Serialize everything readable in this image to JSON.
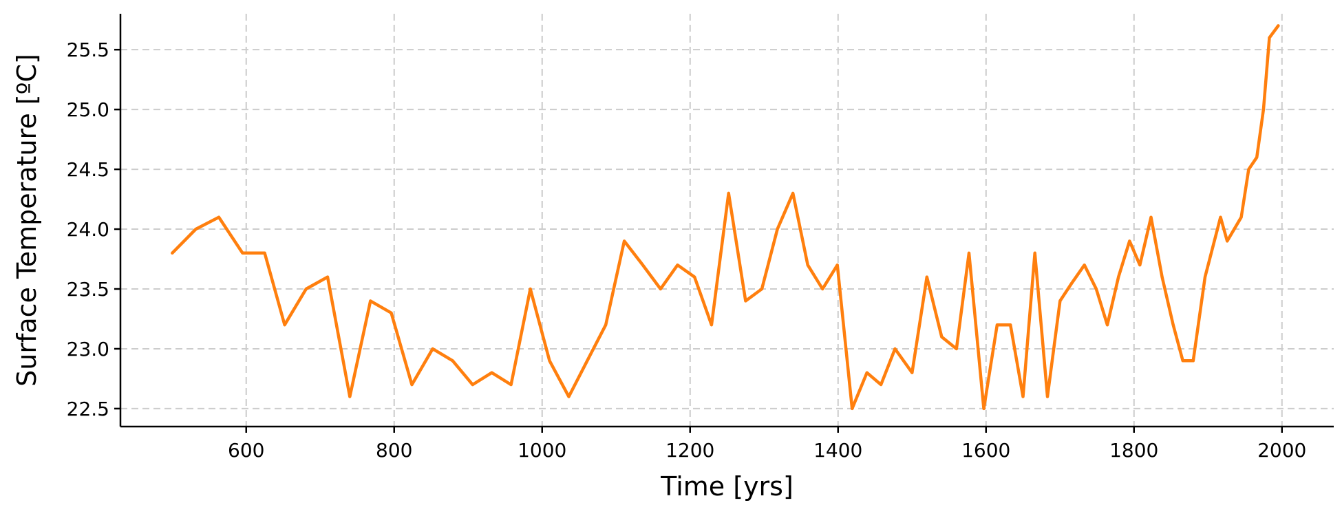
{
  "chart_data": {
    "type": "line",
    "xlabel": "Time [yrs]",
    "ylabel": "Surface Temperature [ºC]",
    "xlim": [
      430,
      2070
    ],
    "ylim": [
      22.35,
      25.8
    ],
    "xticks": [
      600,
      800,
      1000,
      1200,
      1400,
      1600,
      1800,
      2000
    ],
    "yticks": [
      22.5,
      23.0,
      23.5,
      24.0,
      24.5,
      25.0,
      25.5
    ],
    "ytick_labels": [
      "22.5",
      "23.0",
      "23.5",
      "24.0",
      "24.5",
      "25.0",
      "25.5"
    ],
    "grid": true,
    "grid_style": "dashed",
    "series": [
      {
        "color": "#ff7f0e",
        "x": [
          500,
          532,
          563,
          595,
          625,
          652,
          681,
          710,
          740,
          768,
          796,
          824,
          852,
          879,
          906,
          932,
          958,
          984,
          1010,
          1036,
          1061,
          1086,
          1111,
          1136,
          1160,
          1183,
          1206,
          1229,
          1252,
          1275,
          1297,
          1318,
          1339,
          1359,
          1379,
          1399,
          1419,
          1439,
          1458,
          1477,
          1500,
          1520,
          1540,
          1560,
          1577,
          1597,
          1615,
          1633,
          1650,
          1666,
          1683,
          1700,
          1716,
          1733,
          1749,
          1764,
          1779,
          1794,
          1808,
          1823,
          1838,
          1853,
          1866,
          1880,
          1896,
          1917,
          1926,
          1945,
          1955,
          1966,
          1975,
          1983,
          1995
        ],
        "y": [
          23.8,
          24.0,
          24.1,
          23.8,
          23.8,
          23.2,
          23.5,
          23.6,
          22.6,
          23.4,
          23.3,
          22.7,
          23.0,
          22.9,
          22.7,
          22.8,
          22.7,
          23.5,
          22.9,
          22.6,
          22.9,
          23.2,
          23.9,
          23.7,
          23.5,
          23.7,
          23.6,
          23.2,
          24.3,
          23.4,
          23.5,
          24.0,
          24.3,
          23.7,
          23.5,
          23.7,
          22.5,
          22.8,
          22.7,
          23.0,
          22.8,
          23.6,
          23.1,
          23.0,
          23.8,
          22.5,
          23.2,
          23.2,
          22.6,
          23.8,
          22.6,
          23.4,
          23.55,
          23.7,
          23.5,
          23.2,
          23.6,
          23.9,
          23.7,
          24.1,
          23.6,
          23.2,
          22.9,
          22.9,
          23.6,
          24.1,
          23.9,
          24.1,
          24.5,
          24.6,
          25.0,
          25.6,
          25.7
        ]
      }
    ]
  }
}
